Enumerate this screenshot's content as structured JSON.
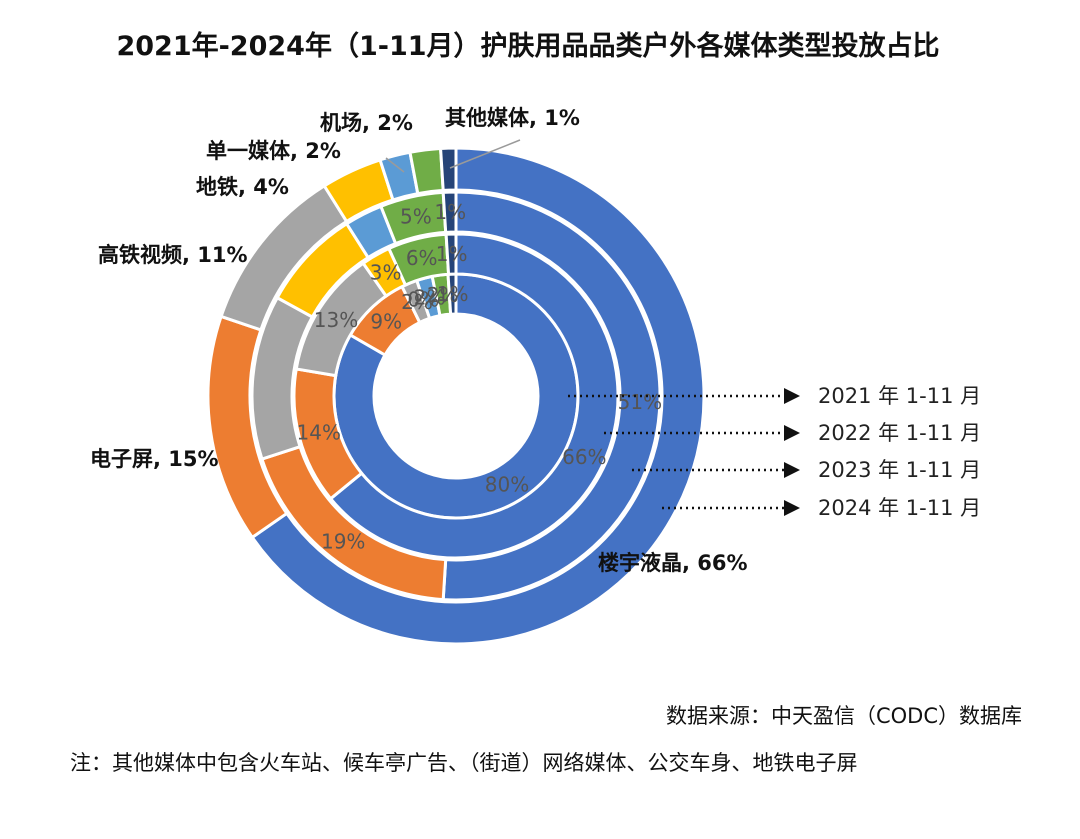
{
  "chart_data": {
    "type": "donut",
    "title": "2021年-2024年（1-11月）护肤用品品类户外各媒体类型投放占比",
    "categories": [
      "楼宇液晶",
      "电子屏",
      "高铁视频",
      "地铁",
      "单一媒体",
      "机场",
      "其他媒体"
    ],
    "colors": [
      "#4472C4",
      "#ED7D31",
      "#A5A5A5",
      "#FFC000",
      "#5B9BD5",
      "#70AD47",
      "#264478"
    ],
    "category_labels": [
      "楼宇液晶, 66%",
      "电子屏, 15%",
      "高铁视频, 11%",
      "地铁, 4%",
      "单一媒体, 2%",
      "机场, 2%",
      "其他媒体, 1%"
    ],
    "series": [
      {
        "name": "2021 年 1-11 月",
        "values": [
          80,
          9,
          2,
          0,
          2,
          2,
          1
        ],
        "labels": [
          "80%",
          "9%",
          "2%",
          "0%",
          "2%",
          "2%",
          "1%"
        ]
      },
      {
        "name": "2022 年 1-11 月",
        "values": [
          66,
          14,
          13,
          3,
          0,
          6,
          1
        ],
        "labels": [
          "66%",
          "14%",
          "13%",
          "3%",
          "",
          "6%",
          "1%"
        ]
      },
      {
        "name": "2023 年 1-11 月",
        "values": [
          51,
          19,
          13,
          8,
          3,
          5,
          1
        ],
        "labels": [
          "51%",
          "19%",
          "",
          "",
          "",
          "5%",
          "1%"
        ]
      },
      {
        "name": "2024 年 1-11 月",
        "values": [
          66,
          15,
          11,
          4,
          2,
          2,
          1
        ],
        "labels": [
          "",
          "",
          "",
          "",
          "",
          "",
          ""
        ]
      }
    ]
  },
  "source": "数据来源：中天盈信（CODC）数据库",
  "note": "注：其他媒体中包含火车站、候车亭广告、（街道）网络媒体、公交车身、地铁电子屏"
}
